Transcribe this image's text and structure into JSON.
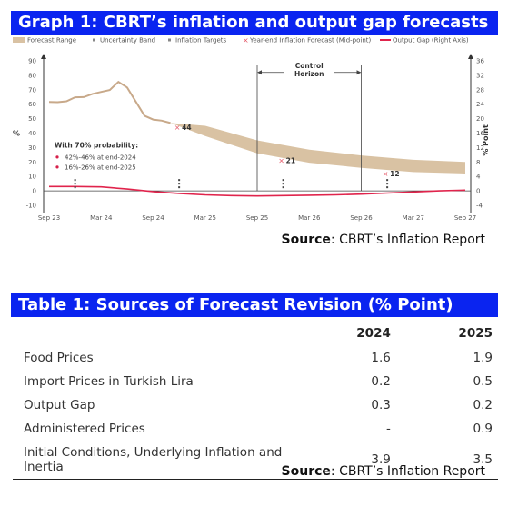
{
  "graph": {
    "title": "Graph 1: CBRT’s inflation and output gap forecasts",
    "source_prefix": "Source",
    "source_text": ": CBRT’s Inflation Report"
  },
  "chart_data": {
    "type": "line",
    "legend": [
      "Forecast Range",
      "Uncertainty Band",
      "Inflation Targets",
      "Year-end Inflation Forecast (Mid-point)",
      "Output Gap (Right Axis)"
    ],
    "legend_position": "top",
    "x_ticks": [
      "Sep 23",
      "Mar 24",
      "Sep 24",
      "Mar 25",
      "Sep 25",
      "Mar 26",
      "Sep 26",
      "Mar 27",
      "Sep 27"
    ],
    "left_axis": {
      "label": "%",
      "ticks": [
        -10,
        0,
        10,
        20,
        30,
        40,
        50,
        60,
        70,
        80,
        90
      ],
      "ylim": [
        -10,
        90
      ]
    },
    "right_axis": {
      "label": "% Point",
      "ticks": [
        -4,
        0,
        4,
        8,
        12,
        16,
        20,
        24,
        28,
        32,
        36
      ],
      "ylim": [
        -4,
        36
      ]
    },
    "inflation_actual": {
      "x": [
        "Sep 23",
        "Oct 23",
        "Nov 23",
        "Dec 23",
        "Jan 24",
        "Feb 24",
        "Mar 24",
        "Apr 24",
        "May 24",
        "Jun 24",
        "Jul 24",
        "Aug 24",
        "Sep 24",
        "Oct 24",
        "Nov 24"
      ],
      "values": [
        61.5,
        61.4,
        62,
        64.8,
        64.9,
        67.1,
        68.5,
        69.8,
        75.5,
        71.6,
        61.8,
        52,
        49.4,
        48.6,
        47
      ]
    },
    "forecast_range": {
      "x": [
        "Nov 24",
        "Mar 25",
        "Sep 25",
        "Mar 26",
        "Sep 26",
        "Mar 27",
        "Sep 27"
      ],
      "lower": [
        47,
        38,
        26,
        19.5,
        16,
        13,
        12
      ],
      "upper": [
        47,
        45,
        35,
        28.5,
        24.5,
        21.5,
        20
      ]
    },
    "midpoint_forecasts": [
      {
        "x": "Dec 24",
        "value": 44,
        "label": "44"
      },
      {
        "x": "Dec 25",
        "value": 21,
        "label": "21"
      },
      {
        "x": "Dec 26",
        "value": 12,
        "label": "12"
      }
    ],
    "inflation_targets": [
      {
        "x": "Dec 23",
        "value": 5
      },
      {
        "x": "Dec 24",
        "value": 5
      },
      {
        "x": "Dec 25",
        "value": 5
      },
      {
        "x": "Dec 26",
        "value": 5
      }
    ],
    "output_gap": {
      "x": [
        "Sep 23",
        "Dec 23",
        "Mar 24",
        "Jun 24",
        "Sep 24",
        "Dec 24",
        "Mar 25",
        "Jun 25",
        "Sep 25",
        "Dec 25",
        "Mar 26",
        "Jun 26",
        "Sep 26",
        "Dec 26",
        "Mar 27",
        "Jun 27",
        "Sep 27"
      ],
      "values": [
        1.2,
        1.2,
        1.1,
        0.5,
        -0.2,
        -0.7,
        -1.1,
        -1.3,
        -1.4,
        -1.3,
        -1.2,
        -1.1,
        -0.9,
        -0.6,
        -0.3,
        0,
        0.2
      ]
    },
    "annotations": {
      "control_horizon": "Control\nHorizon",
      "probability_title": "With 70% probability:",
      "probability_lines": [
        "42%-46% at end-2024",
        "16%-26% at end-2025"
      ]
    }
  },
  "table": {
    "title": "Table 1: Sources of Forecast Revision (% Point)",
    "columns": [
      "",
      "2024",
      "2025"
    ],
    "rows": [
      {
        "label": "Food Prices",
        "v2024": "1.6",
        "v2025": "1.9"
      },
      {
        "label": "Import Prices in Turkish Lira",
        "v2024": "0.2",
        "v2025": "0.5"
      },
      {
        "label": "Output Gap",
        "v2024": "0.3",
        "v2025": "0.2"
      },
      {
        "label": "Administered Prices",
        "v2024": "-",
        "v2025": "0.9"
      },
      {
        "label": "Initial Conditions, Underlying Inflation and Inertia",
        "v2024": "3.9",
        "v2025": "3.5"
      }
    ],
    "source_prefix": "Source",
    "source_text": ": CBRT’s Inflation Report"
  },
  "colors": {
    "banner": "#0a24f0",
    "forecast_range": "#d9c2a3",
    "inflation_line": "#c8a98a",
    "output_gap": "#e0244c",
    "midpoint_marker": "#e55a6a",
    "probability_dot": "#d6204a"
  }
}
